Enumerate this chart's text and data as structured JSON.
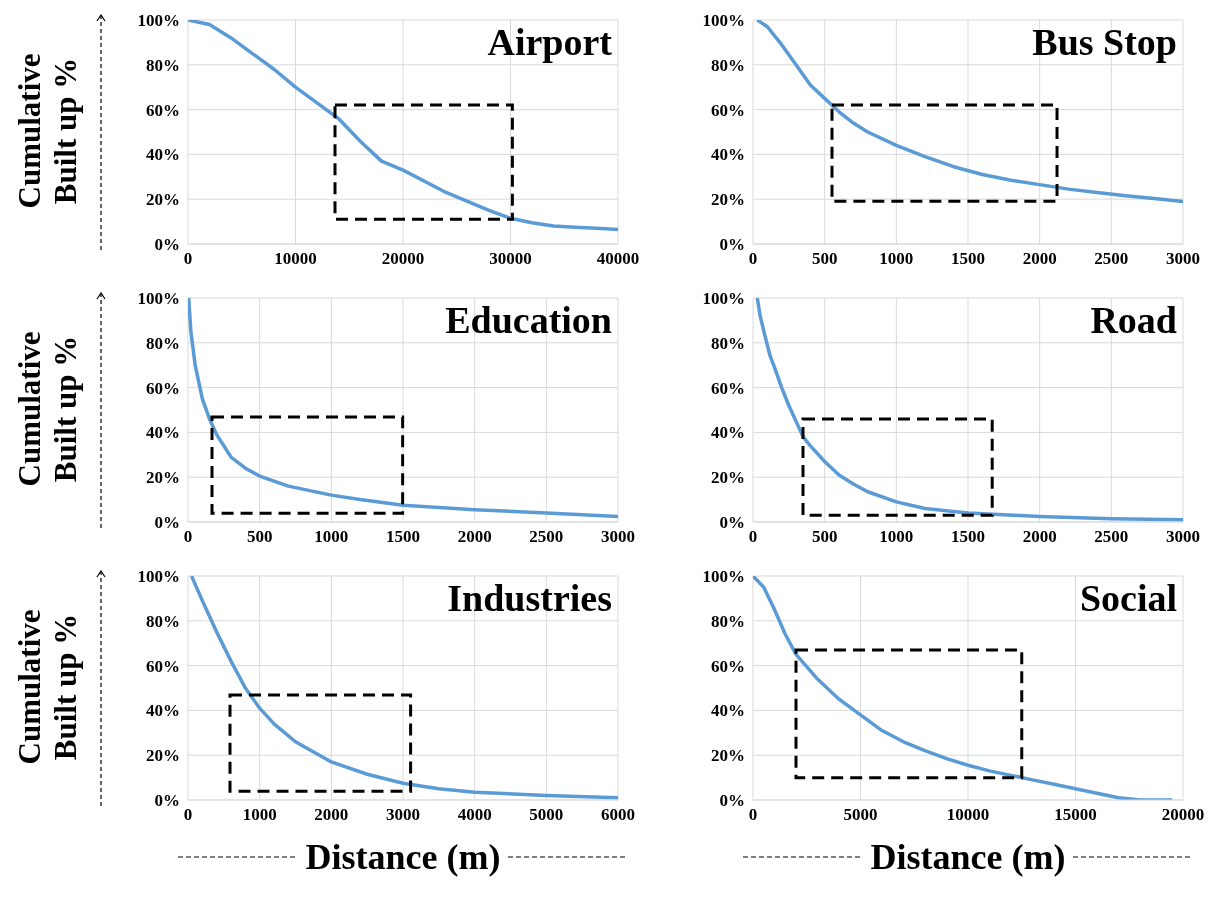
{
  "chart_data": [
    {
      "type": "line",
      "title": "Airport",
      "ylabel": "Cumulative Built up %",
      "grid": true,
      "xlim": [
        0,
        40000
      ],
      "xticks": [
        0,
        10000,
        20000,
        30000,
        40000
      ],
      "ylim": [
        0,
        100
      ],
      "yticks": [
        {
          "value": 0,
          "label": "0%"
        },
        {
          "value": 20,
          "label": "20%"
        },
        {
          "value": 40,
          "label": "40%"
        },
        {
          "value": 60,
          "label": "60%"
        },
        {
          "value": 80,
          "label": "80%"
        },
        {
          "value": 100,
          "label": "100%"
        }
      ],
      "series": [
        {
          "color": "#5b9bd5",
          "x": [
            0,
            2000,
            4000,
            6000,
            8000,
            10000,
            12000,
            14000,
            16000,
            18000,
            20000,
            22000,
            24000,
            26000,
            28000,
            30000,
            32000,
            34000,
            36000,
            38000,
            40000
          ],
          "values": [
            100,
            98,
            92,
            85,
            78,
            70,
            63,
            56,
            46,
            37,
            33,
            28,
            23,
            19,
            15,
            11.5,
            9.5,
            8,
            7.5,
            7,
            6.5
          ]
        }
      ]
    },
    {
      "type": "line",
      "title": "Bus Stop",
      "grid": true,
      "xlim": [
        0,
        3000
      ],
      "xticks": [
        0,
        500,
        1000,
        1500,
        2000,
        2500,
        3000
      ],
      "ylim": [
        0,
        100
      ],
      "yticks": [
        {
          "value": 0,
          "label": "0%"
        },
        {
          "value": 20,
          "label": "20%"
        },
        {
          "value": 40,
          "label": "40%"
        },
        {
          "value": 60,
          "label": "60%"
        },
        {
          "value": 80,
          "label": "80%"
        },
        {
          "value": 100,
          "label": "100%"
        }
      ],
      "series": [
        {
          "color": "#5b9bd5",
          "x": [
            30,
            100,
            200,
            300,
            400,
            500,
            600,
            700,
            800,
            1000,
            1200,
            1400,
            1600,
            1800,
            2000,
            2200,
            2400,
            2600,
            2800,
            3000
          ],
          "values": [
            100,
            97,
            89,
            80,
            71,
            65,
            59,
            54,
            50,
            44,
            39,
            34.5,
            31,
            28.5,
            26.5,
            24.5,
            23,
            21.5,
            20.3,
            19
          ]
        }
      ]
    },
    {
      "type": "line",
      "title": "Education",
      "ylabel": "Cumulative Built up %",
      "grid": true,
      "xlim": [
        0,
        3000
      ],
      "xticks": [
        0,
        500,
        1000,
        1500,
        2000,
        2500,
        3000
      ],
      "ylim": [
        0,
        100
      ],
      "yticks": [
        {
          "value": 0,
          "label": "0%"
        },
        {
          "value": 20,
          "label": "20%"
        },
        {
          "value": 40,
          "label": "40%"
        },
        {
          "value": 60,
          "label": "60%"
        },
        {
          "value": 80,
          "label": "80%"
        },
        {
          "value": 100,
          "label": "100%"
        }
      ],
      "series": [
        {
          "color": "#5b9bd5",
          "x": [
            5,
            20,
            50,
            100,
            150,
            200,
            300,
            400,
            500,
            700,
            1000,
            1200,
            1500,
            2000,
            2500,
            3000
          ],
          "values": [
            100,
            85,
            70,
            55,
            46,
            39,
            29,
            24,
            20.5,
            16,
            12,
            10,
            7.5,
            5.5,
            4,
            2.5
          ]
        }
      ]
    },
    {
      "type": "line",
      "title": "Road",
      "grid": true,
      "xlim": [
        0,
        3000
      ],
      "xticks": [
        0,
        500,
        1000,
        1500,
        2000,
        2500,
        3000
      ],
      "ylim": [
        0,
        100
      ],
      "yticks": [
        {
          "value": 0,
          "label": "0%"
        },
        {
          "value": 20,
          "label": "20%"
        },
        {
          "value": 40,
          "label": "40%"
        },
        {
          "value": 60,
          "label": "60%"
        },
        {
          "value": 80,
          "label": "80%"
        },
        {
          "value": 100,
          "label": "100%"
        }
      ],
      "series": [
        {
          "color": "#5b9bd5",
          "x": [
            30,
            50,
            80,
            120,
            150,
            200,
            250,
            300,
            350,
            400,
            500,
            600,
            700,
            800,
            1000,
            1200,
            1500,
            2000,
            2500,
            3000
          ],
          "values": [
            100,
            92,
            84,
            74,
            69,
            60,
            52,
            45,
            38,
            34,
            27,
            21,
            17,
            13.5,
            9,
            6,
            4,
            2.5,
            1.5,
            1
          ]
        }
      ]
    },
    {
      "type": "line",
      "title": "Industries",
      "ylabel": "Cumulative Built up %",
      "xlabel": "Distance (m)",
      "grid": true,
      "xlim": [
        0,
        6000
      ],
      "xticks": [
        0,
        1000,
        2000,
        3000,
        4000,
        5000,
        6000
      ],
      "ylim": [
        0,
        100
      ],
      "yticks": [
        {
          "value": 0,
          "label": "0%"
        },
        {
          "value": 20,
          "label": "20%"
        },
        {
          "value": 40,
          "label": "40%"
        },
        {
          "value": 60,
          "label": "60%"
        },
        {
          "value": 80,
          "label": "80%"
        },
        {
          "value": 100,
          "label": "100%"
        }
      ],
      "series": [
        {
          "color": "#5b9bd5",
          "x": [
            50,
            200,
            400,
            600,
            800,
            1000,
            1200,
            1500,
            2000,
            2500,
            3000,
            3500,
            4000,
            5000,
            6000
          ],
          "values": [
            100,
            89,
            75,
            62,
            50,
            41,
            34,
            26,
            17,
            11.5,
            7.5,
            5,
            3.5,
            2,
            1
          ]
        }
      ]
    },
    {
      "type": "line",
      "title": "Social",
      "xlabel": "Distance (m)",
      "grid": true,
      "xlim": [
        0,
        20000
      ],
      "xticks": [
        0,
        5000,
        10000,
        15000,
        20000
      ],
      "ylim": [
        0,
        100
      ],
      "yticks": [
        {
          "value": 0,
          "label": "0%"
        },
        {
          "value": 20,
          "label": "20%"
        },
        {
          "value": 40,
          "label": "40%"
        },
        {
          "value": 60,
          "label": "60%"
        },
        {
          "value": 80,
          "label": "80%"
        },
        {
          "value": 100,
          "label": "100%"
        }
      ],
      "series": [
        {
          "color": "#5b9bd5",
          "x": [
            0,
            500,
            1000,
            1500,
            2000,
            3000,
            4000,
            5000,
            6000,
            7000,
            8000,
            9000,
            10000,
            11000,
            12000,
            13000,
            14000,
            15000,
            16000,
            17000,
            18000,
            19500
          ],
          "values": [
            100,
            95,
            85,
            74,
            65,
            54,
            45,
            38,
            31,
            26,
            22,
            18.5,
            15.5,
            13,
            11,
            9,
            7,
            5,
            3,
            1,
            0,
            0
          ]
        }
      ]
    }
  ]
}
